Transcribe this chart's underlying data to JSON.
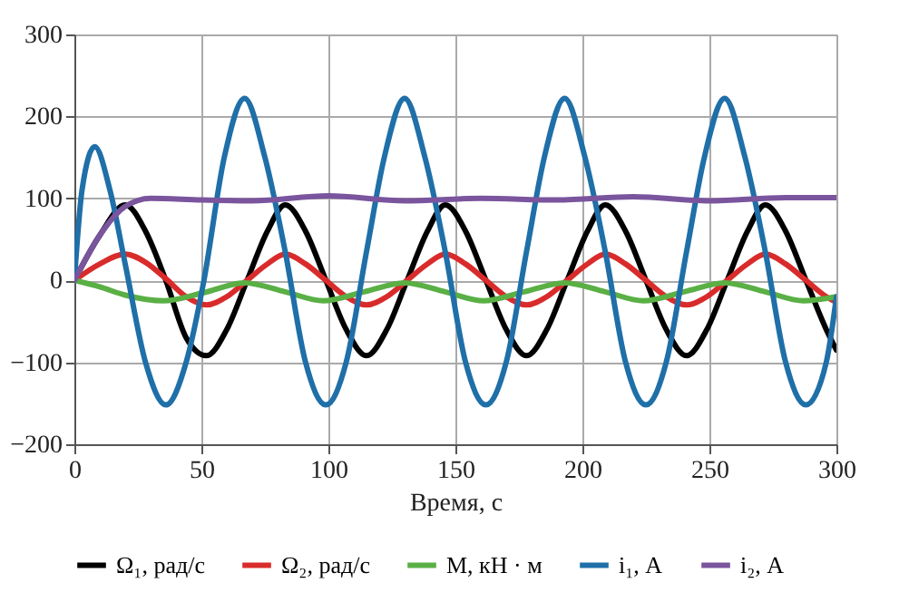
{
  "chart_data": {
    "type": "line",
    "xlabel": "Время, с",
    "xlim": [
      0,
      300
    ],
    "xticks": [
      0,
      50,
      100,
      150,
      200,
      250,
      300
    ],
    "ylim": [
      -200,
      300
    ],
    "yticks": [
      -200,
      -100,
      0,
      100,
      200,
      300
    ],
    "grid": true,
    "legend": "bottom",
    "line_style": "solid",
    "marker": "none",
    "series": [
      {
        "name": "Ω₁, рад/с",
        "color": "#000000",
        "x": [
          0,
          10,
          20,
          28,
          36,
          44,
          52,
          60,
          68,
          76,
          83,
          91,
          99,
          107,
          115,
          123,
          131,
          139,
          146,
          154,
          162,
          170,
          178,
          186,
          194,
          202,
          209,
          217,
          225,
          233,
          241,
          249,
          257,
          265,
          272,
          280,
          288,
          296,
          300
        ],
        "values": [
          0,
          55,
          92,
          60,
          0,
          -70,
          -92,
          -60,
          0,
          60,
          92,
          60,
          0,
          -60,
          -92,
          -60,
          0,
          60,
          92,
          60,
          0,
          -60,
          -92,
          -60,
          0,
          60,
          92,
          60,
          0,
          -60,
          -92,
          -60,
          0,
          60,
          92,
          60,
          0,
          -60,
          -85
        ]
      },
      {
        "name": "Ω₂, рад/с",
        "color": "#d92b2b",
        "x": [
          0,
          10,
          20,
          28,
          36,
          44,
          52,
          60,
          68,
          76,
          83,
          91,
          99,
          107,
          115,
          123,
          131,
          139,
          146,
          154,
          162,
          170,
          178,
          186,
          194,
          202,
          209,
          217,
          225,
          233,
          241,
          249,
          257,
          265,
          272,
          280,
          288,
          296,
          300
        ],
        "values": [
          0,
          20,
          32,
          22,
          2,
          -20,
          -30,
          -20,
          0,
          20,
          32,
          20,
          0,
          -20,
          -30,
          -20,
          0,
          20,
          32,
          20,
          0,
          -20,
          -30,
          -20,
          0,
          20,
          32,
          20,
          0,
          -20,
          -30,
          -20,
          0,
          20,
          32,
          20,
          0,
          -20,
          -27
        ]
      },
      {
        "name": "M, кН · м",
        "color": "#5aaf45",
        "x": [
          0,
          10,
          20,
          35,
          51,
          67,
          83,
          98,
          114,
          130,
          146,
          161,
          177,
          193,
          209,
          224,
          240,
          256,
          272,
          287,
          300
        ],
        "values": [
          0,
          -8,
          -18,
          -25,
          -15,
          -3,
          -14,
          -25,
          -14,
          -3,
          -14,
          -25,
          -14,
          -3,
          -14,
          -25,
          -14,
          -3,
          -14,
          -25,
          -20
        ]
      },
      {
        "name": "i₁, А",
        "color": "#1f6fa8",
        "x": [
          0,
          3,
          8,
          14,
          20,
          28,
          36,
          44,
          51,
          59,
          67,
          75,
          83,
          91,
          99,
          107,
          115,
          122,
          130,
          138,
          146,
          154,
          162,
          170,
          178,
          185,
          193,
          201,
          209,
          217,
          225,
          233,
          241,
          248,
          256,
          264,
          272,
          280,
          288,
          296,
          300
        ],
        "values": [
          0,
          110,
          163,
          110,
          20,
          -100,
          -152,
          -100,
          0,
          150,
          222,
          150,
          35,
          -100,
          -152,
          -100,
          35,
          150,
          222,
          150,
          35,
          -100,
          -152,
          -100,
          35,
          150,
          222,
          150,
          35,
          -100,
          -152,
          -100,
          35,
          150,
          222,
          150,
          35,
          -100,
          -152,
          -100,
          -20
        ]
      },
      {
        "name": "i₂, А",
        "color": "#7a559e",
        "x": [
          0,
          10,
          20,
          30,
          50,
          70,
          100,
          130,
          160,
          190,
          220,
          250,
          280,
          300
        ],
        "values": [
          0,
          55,
          90,
          100,
          98,
          97,
          103,
          97,
          100,
          98,
          102,
          97,
          101,
          101
        ]
      }
    ]
  }
}
